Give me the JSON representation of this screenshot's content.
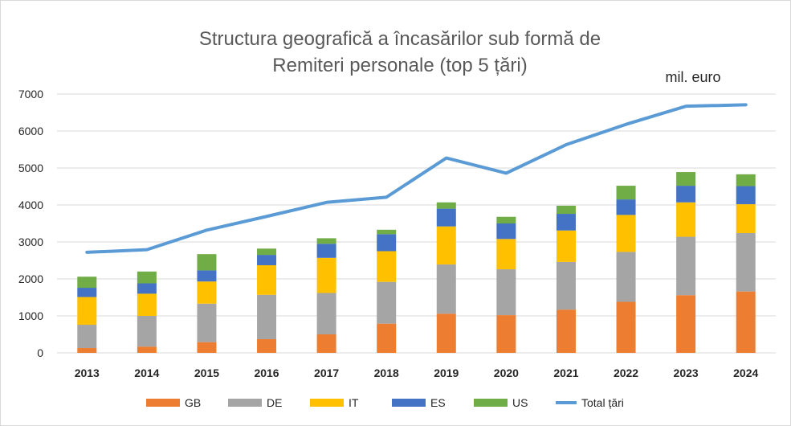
{
  "chart_data": {
    "type": "bar",
    "stacked": true,
    "title_lines": [
      "Structura geografică a încasărilor sub formă de",
      "Remiteri personale (top 5 țări)"
    ],
    "unit_label": "mil. euro",
    "categories": [
      "2013",
      "2014",
      "2015",
      "2016",
      "2017",
      "2018",
      "2019",
      "2020",
      "2021",
      "2022",
      "2023",
      "2024"
    ],
    "ylim": [
      0,
      7000
    ],
    "yticks": [
      0,
      1000,
      2000,
      3000,
      4000,
      5000,
      6000,
      7000
    ],
    "grid": true,
    "legend_position": "bottom",
    "series": [
      {
        "name": "GB",
        "type": "bar",
        "color": "#ED7D31",
        "values": [
          130,
          170,
          290,
          370,
          500,
          790,
          1060,
          1020,
          1170,
          1380,
          1560,
          1660
        ]
      },
      {
        "name": "DE",
        "type": "bar",
        "color": "#A5A5A5",
        "values": [
          630,
          830,
          1040,
          1200,
          1120,
          1130,
          1330,
          1240,
          1290,
          1350,
          1580,
          1580
        ]
      },
      {
        "name": "IT",
        "type": "bar",
        "color": "#FFC000",
        "values": [
          750,
          600,
          600,
          800,
          950,
          830,
          1030,
          820,
          850,
          1000,
          930,
          780
        ]
      },
      {
        "name": "ES",
        "type": "bar",
        "color": "#4472C4",
        "values": [
          250,
          280,
          300,
          280,
          380,
          460,
          480,
          420,
          450,
          420,
          450,
          490
        ]
      },
      {
        "name": "US",
        "type": "bar",
        "color": "#70AD47",
        "values": [
          300,
          320,
          440,
          170,
          150,
          120,
          170,
          180,
          220,
          370,
          370,
          320
        ]
      },
      {
        "name": "Total țări",
        "type": "line",
        "color": "#5B9BD5",
        "values": [
          2720,
          2790,
          3320,
          3690,
          4070,
          4210,
          5270,
          4860,
          5630,
          6180,
          6670,
          6710
        ]
      }
    ]
  }
}
